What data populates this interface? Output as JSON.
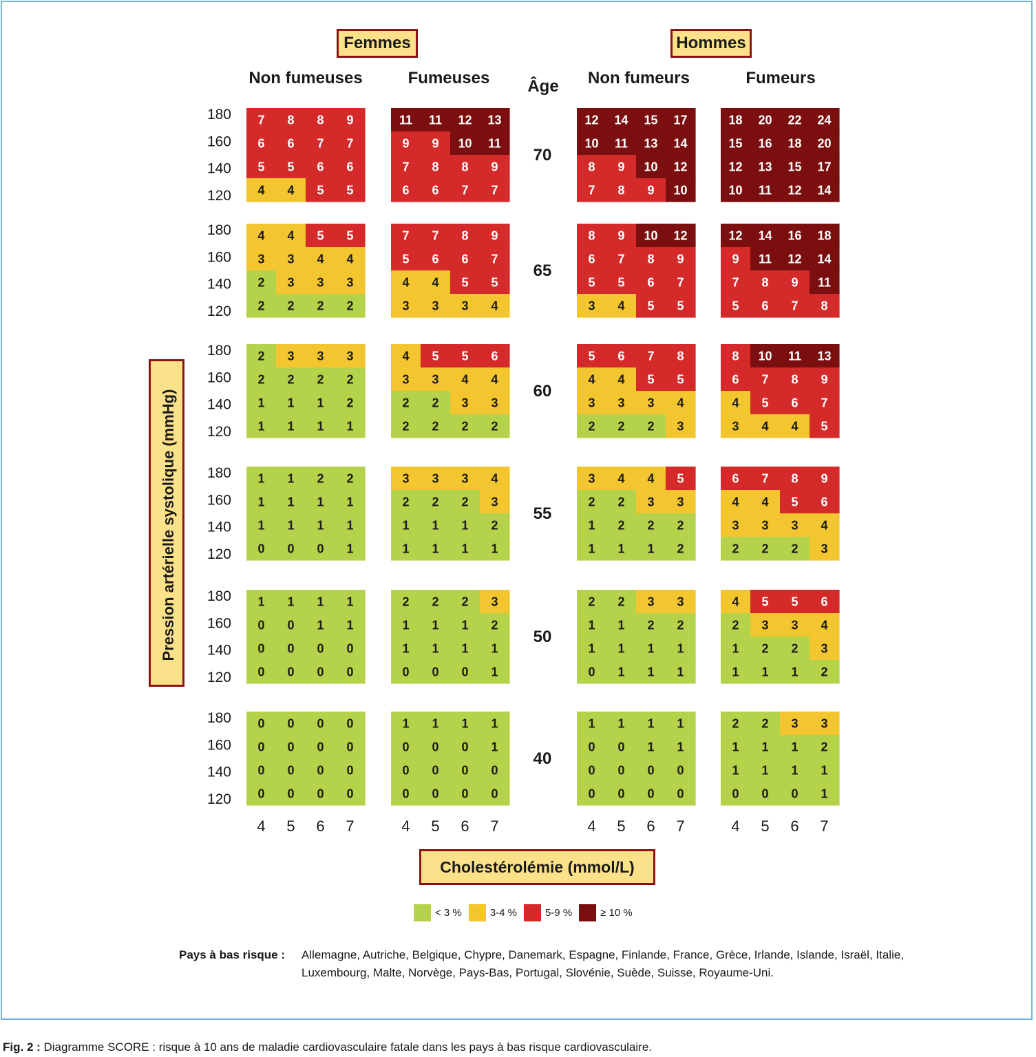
{
  "sex_labels": [
    "Femmes",
    "Hommes"
  ],
  "column_headers": [
    "Non fumeuses",
    "Fumeuses",
    "Non fumeurs",
    "Fumeurs"
  ],
  "age_heading": "Âge",
  "y_axis_label": "Pression artérielle systolique (mmHg)",
  "x_axis_label": "Cholestérolémie (mmol/L)",
  "legend": [
    {
      "label": "< 3 %",
      "color": "#b5d24b"
    },
    {
      "label": "3-4 %",
      "color": "#f3c52f"
    },
    {
      "label": "5-9 %",
      "color": "#d52a2a"
    },
    {
      "label": "≥ 10 %",
      "color": "#7b0f0f"
    }
  ],
  "countries_lead": "Pays à bas risque :",
  "countries_text": "Allemagne, Autriche, Belgique, Chypre, Danemark, Espagne, Finlande, France, Grèce, Irlande, Islande, Israël, Italie, Luxembourg, Malte, Norvège, Pays-Bas, Portugal, Slovénie, Suède, Suisse, Royaume-Uni.",
  "caption_lead": "Fig. 2 :",
  "caption_text": " Diagramme SCORE : risque à 10 ans de maladie cardiovasculaire fatale dans les pays à bas risque cardiovasculaire.",
  "chart_data": {
    "type": "heatmap",
    "xlabel": "Cholestérolémie (mmol/L)",
    "ylabel": "Pression artérielle systolique (mmHg)",
    "cholesterol_ticks": [
      "4",
      "5",
      "6",
      "7"
    ],
    "sbp_ticks": [
      "180",
      "160",
      "140",
      "120"
    ],
    "ages": [
      "70",
      "65",
      "60",
      "55",
      "50",
      "40"
    ],
    "groups": [
      "Non fumeuses",
      "Fumeuses",
      "Non fumeurs",
      "Fumeurs"
    ],
    "colors": {
      "low": "#b5d24b",
      "mid": "#f3c52f",
      "high": "#d52a2a",
      "very_high": "#7b0f0f"
    },
    "grids": [
      [
        [
          [
            7,
            8,
            8,
            9
          ],
          [
            6,
            6,
            7,
            7
          ],
          [
            5,
            5,
            6,
            6
          ],
          [
            4,
            4,
            5,
            5
          ]
        ],
        [
          [
            11,
            11,
            12,
            13
          ],
          [
            9,
            9,
            10,
            11
          ],
          [
            7,
            8,
            8,
            9
          ],
          [
            6,
            6,
            7,
            7
          ]
        ],
        [
          [
            12,
            14,
            15,
            17
          ],
          [
            10,
            11,
            13,
            14
          ],
          [
            8,
            9,
            10,
            12
          ],
          [
            7,
            8,
            9,
            10
          ]
        ],
        [
          [
            18,
            20,
            22,
            24
          ],
          [
            15,
            16,
            18,
            20
          ],
          [
            12,
            13,
            15,
            17
          ],
          [
            10,
            11,
            12,
            14
          ]
        ]
      ],
      [
        [
          [
            4,
            4,
            5,
            5
          ],
          [
            3,
            3,
            4,
            4
          ],
          [
            2,
            3,
            3,
            3
          ],
          [
            2,
            2,
            2,
            2
          ]
        ],
        [
          [
            7,
            7,
            8,
            9
          ],
          [
            5,
            6,
            6,
            7
          ],
          [
            4,
            4,
            5,
            5
          ],
          [
            3,
            3,
            3,
            4
          ]
        ],
        [
          [
            8,
            9,
            10,
            12
          ],
          [
            6,
            7,
            8,
            9
          ],
          [
            5,
            5,
            6,
            7
          ],
          [
            3,
            4,
            5,
            5
          ]
        ],
        [
          [
            12,
            14,
            16,
            18
          ],
          [
            9,
            11,
            12,
            14
          ],
          [
            7,
            8,
            9,
            11
          ],
          [
            5,
            6,
            7,
            8
          ]
        ]
      ],
      [
        [
          [
            2,
            3,
            3,
            3
          ],
          [
            2,
            2,
            2,
            2
          ],
          [
            1,
            1,
            1,
            2
          ],
          [
            1,
            1,
            1,
            1
          ]
        ],
        [
          [
            4,
            5,
            5,
            6
          ],
          [
            3,
            3,
            4,
            4
          ],
          [
            2,
            2,
            3,
            3
          ],
          [
            2,
            2,
            2,
            2
          ]
        ],
        [
          [
            5,
            6,
            7,
            8
          ],
          [
            4,
            4,
            5,
            5
          ],
          [
            3,
            3,
            3,
            4
          ],
          [
            2,
            2,
            2,
            3
          ]
        ],
        [
          [
            8,
            10,
            11,
            13
          ],
          [
            6,
            7,
            8,
            9
          ],
          [
            4,
            5,
            6,
            7
          ],
          [
            3,
            4,
            4,
            5
          ]
        ]
      ],
      [
        [
          [
            1,
            1,
            2,
            2
          ],
          [
            1,
            1,
            1,
            1
          ],
          [
            1,
            1,
            1,
            1
          ],
          [
            0,
            0,
            0,
            1
          ]
        ],
        [
          [
            3,
            3,
            3,
            4
          ],
          [
            2,
            2,
            2,
            3
          ],
          [
            1,
            1,
            1,
            2
          ],
          [
            1,
            1,
            1,
            1
          ]
        ],
        [
          [
            3,
            4,
            4,
            5
          ],
          [
            2,
            2,
            3,
            3
          ],
          [
            1,
            2,
            2,
            2
          ],
          [
            1,
            1,
            1,
            2
          ]
        ],
        [
          [
            6,
            7,
            8,
            9
          ],
          [
            4,
            4,
            5,
            6
          ],
          [
            3,
            3,
            3,
            4
          ],
          [
            2,
            2,
            2,
            3
          ]
        ]
      ],
      [
        [
          [
            1,
            1,
            1,
            1
          ],
          [
            0,
            0,
            1,
            1
          ],
          [
            0,
            0,
            0,
            0
          ],
          [
            0,
            0,
            0,
            0
          ]
        ],
        [
          [
            2,
            2,
            2,
            3
          ],
          [
            1,
            1,
            1,
            2
          ],
          [
            1,
            1,
            1,
            1
          ],
          [
            0,
            0,
            0,
            1
          ]
        ],
        [
          [
            2,
            2,
            3,
            3
          ],
          [
            1,
            1,
            2,
            2
          ],
          [
            1,
            1,
            1,
            1
          ],
          [
            0,
            1,
            1,
            1
          ]
        ],
        [
          [
            4,
            5,
            5,
            6
          ],
          [
            2,
            3,
            3,
            4
          ],
          [
            1,
            2,
            2,
            3
          ],
          [
            1,
            1,
            1,
            2
          ]
        ]
      ],
      [
        [
          [
            0,
            0,
            0,
            0
          ],
          [
            0,
            0,
            0,
            0
          ],
          [
            0,
            0,
            0,
            0
          ],
          [
            0,
            0,
            0,
            0
          ]
        ],
        [
          [
            1,
            1,
            1,
            1
          ],
          [
            0,
            0,
            0,
            1
          ],
          [
            0,
            0,
            0,
            0
          ],
          [
            0,
            0,
            0,
            0
          ]
        ],
        [
          [
            1,
            1,
            1,
            1
          ],
          [
            0,
            0,
            1,
            1
          ],
          [
            0,
            0,
            0,
            0
          ],
          [
            0,
            0,
            0,
            0
          ]
        ],
        [
          [
            2,
            2,
            3,
            3
          ],
          [
            1,
            1,
            1,
            2
          ],
          [
            1,
            1,
            1,
            1
          ],
          [
            0,
            0,
            0,
            1
          ]
        ]
      ]
    ]
  }
}
